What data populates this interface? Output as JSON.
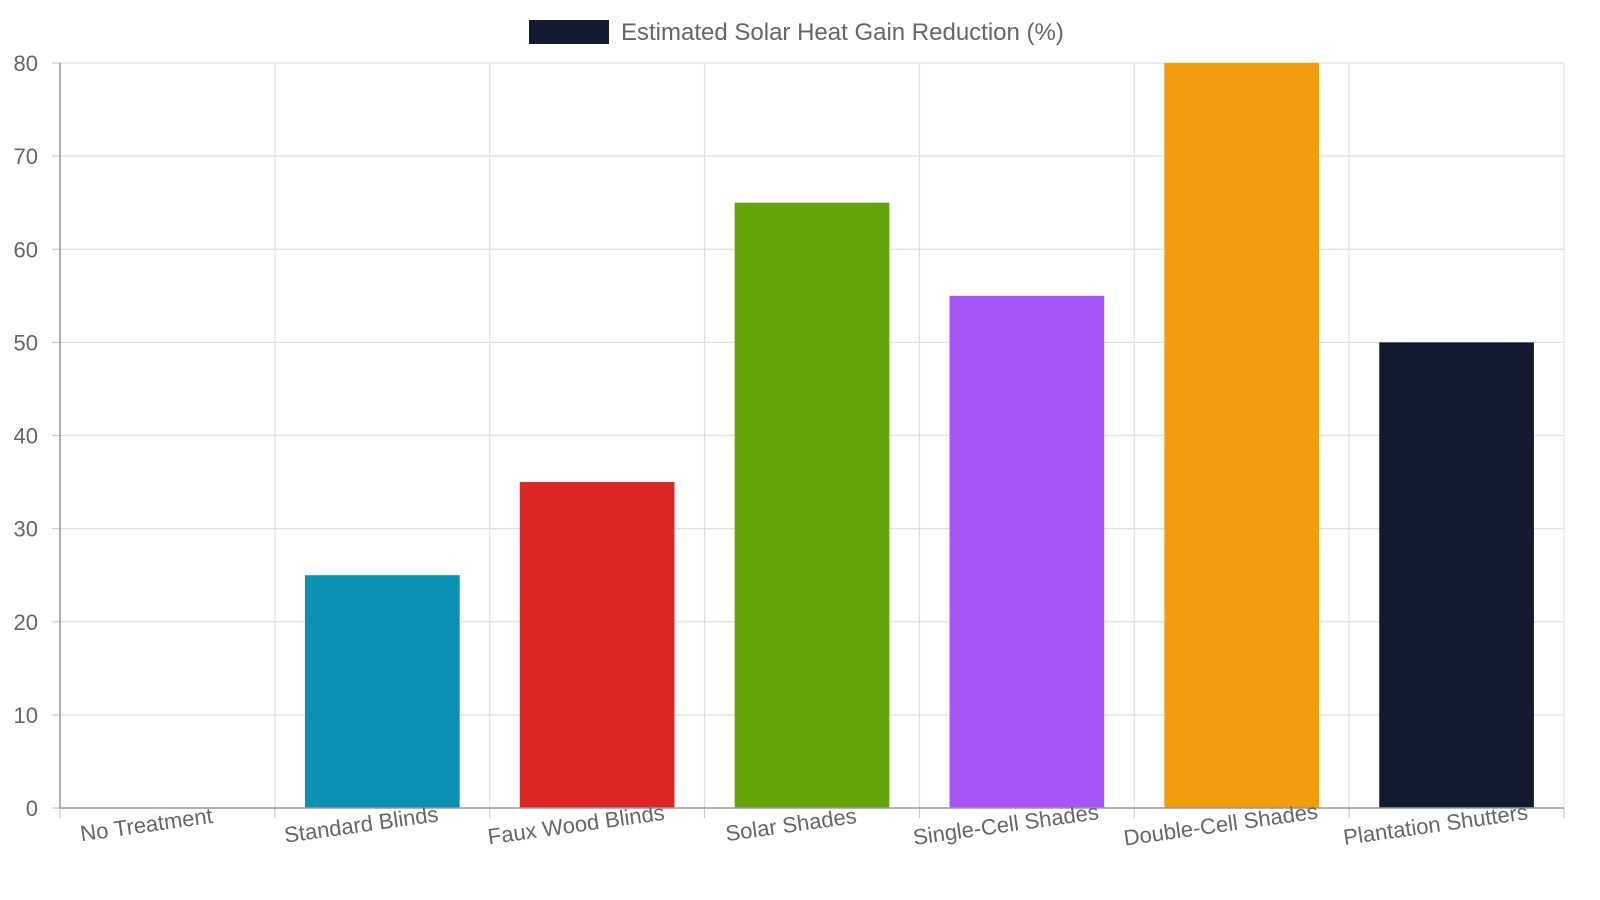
{
  "chart_data": {
    "type": "bar",
    "categories": [
      "No Treatment",
      "Standard Blinds",
      "Faux Wood Blinds",
      "Solar Shades",
      "Single-Cell Shades",
      "Double-Cell Shades",
      "Plantation Shutters"
    ],
    "series": [
      {
        "name": "Estimated Solar Heat Gain Reduction (%)",
        "values": [
          0,
          25,
          35,
          65,
          55,
          80,
          50
        ],
        "colors": [
          "#0891b2",
          "#0891b2",
          "#dc2626",
          "#65a30d",
          "#a855f7",
          "#f39c0e",
          "#111a2e"
        ]
      }
    ],
    "ylim": [
      0,
      80
    ],
    "yticks": [
      0,
      10,
      20,
      30,
      40,
      50,
      60,
      70,
      80
    ],
    "grid": true,
    "legend": {
      "position": "top-center",
      "color": "#111a2e"
    },
    "xlabel": "",
    "ylabel": ""
  }
}
